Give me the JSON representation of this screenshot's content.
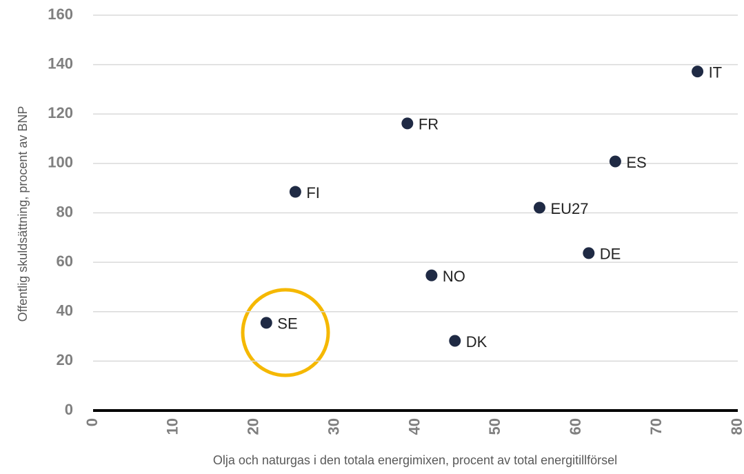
{
  "chart_data": {
    "type": "scatter",
    "x_label": "Olja och naturgas i den totala energimixen, procent av total energitillförsel",
    "y_label": "Offentlig skuldsättning, procent av BNP",
    "labels": [
      "SE",
      "FI",
      "FR",
      "NO",
      "DK",
      "EU27",
      "DE",
      "ES",
      "IT"
    ],
    "x": [
      21.5,
      25.1,
      39.0,
      42.0,
      44.9,
      55.4,
      61.5,
      64.8,
      75.0
    ],
    "values": [
      35.5,
      88.5,
      116.2,
      54.7,
      28.2,
      82.1,
      63.7,
      100.8,
      137.2
    ],
    "color": "#1f2a44",
    "xlim": [
      0,
      80
    ],
    "xticks": [
      0,
      10,
      20,
      30,
      40,
      50,
      60,
      70,
      80
    ],
    "ylim": [
      0,
      160
    ],
    "yticks": [
      0,
      20,
      40,
      60,
      80,
      100,
      120,
      140,
      160
    ],
    "grid": true
  }
}
